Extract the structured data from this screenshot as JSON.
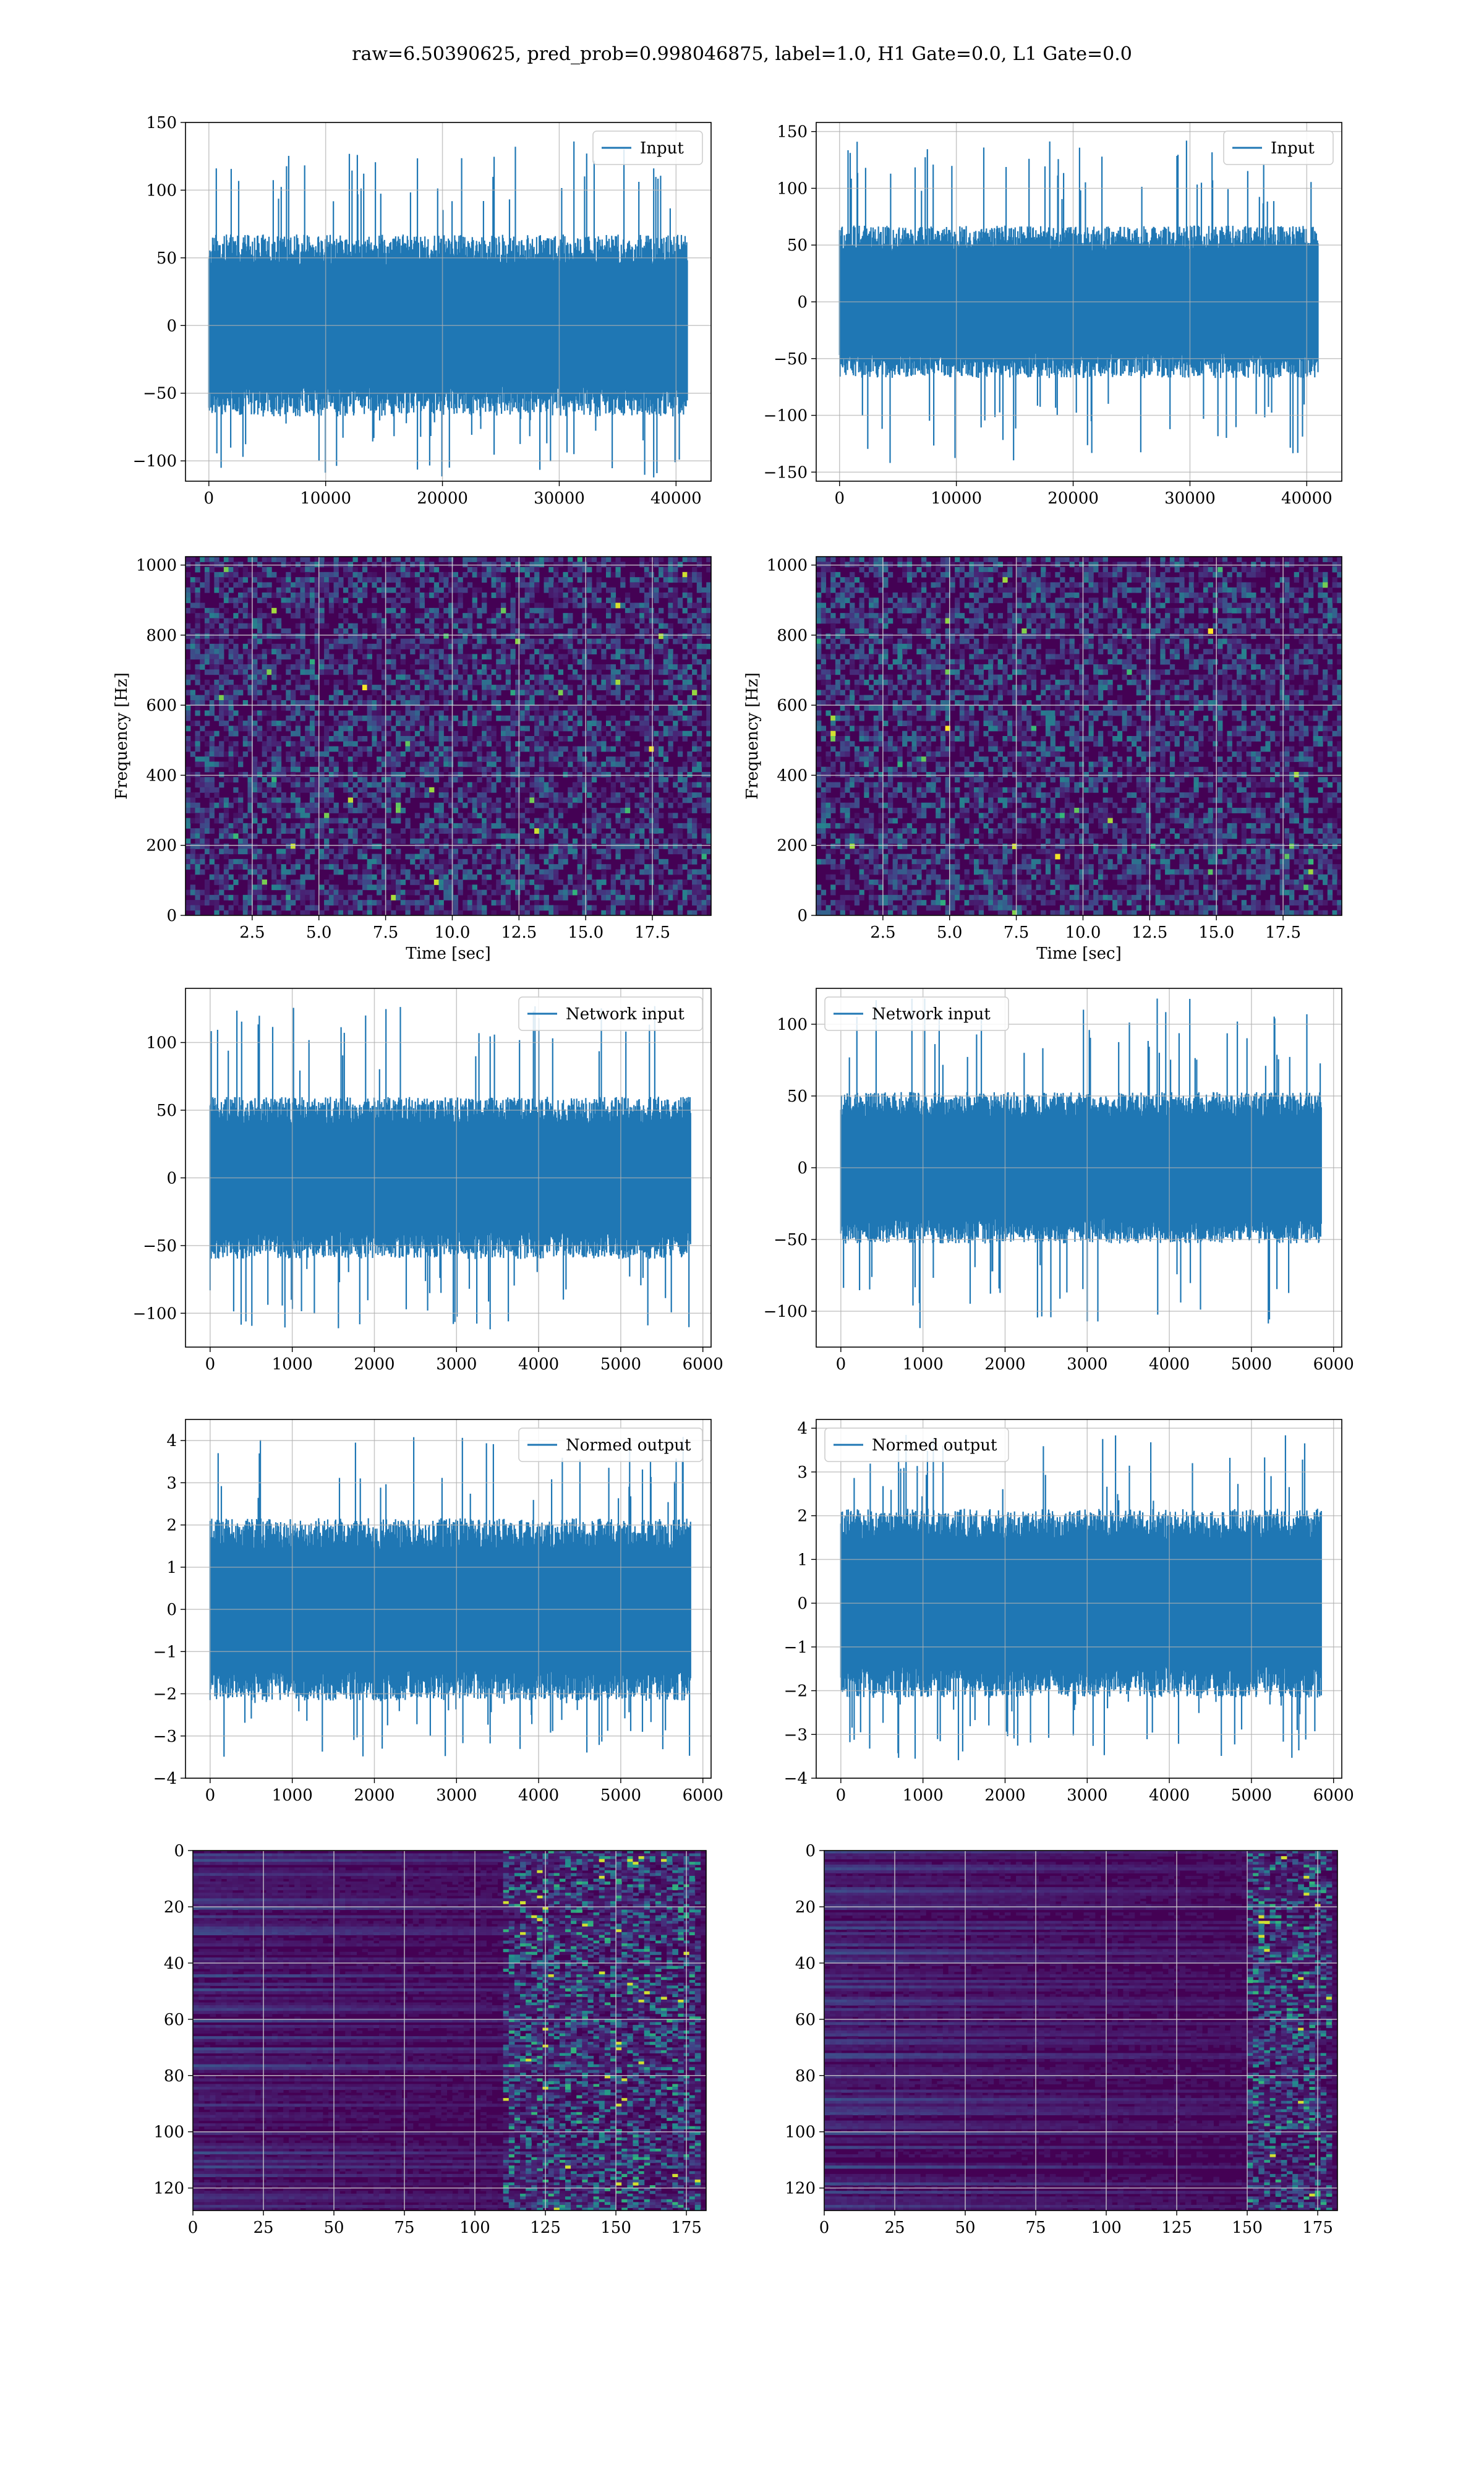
{
  "figure": {
    "suptitle": "raw=6.50390625, pred_prob=0.998046875, label=1.0, H1 Gate=0.0, L1 Gate=0.0",
    "colors": {
      "series": "#1f77b4",
      "grid": "#b0b0b0",
      "viridis_low": "#440154",
      "viridis_high": "#fde725"
    }
  },
  "chart_data": [
    {
      "type": "line",
      "panel": "row1-left",
      "legend": [
        "Input"
      ],
      "legend_loc": "upper right",
      "series": [
        {
          "name": "Input",
          "n_points": 40960,
          "amplitude_range": [
            -115,
            138
          ],
          "noise_sd": 28
        }
      ],
      "xlim": [
        -2000,
        43000
      ],
      "ylim": [
        -115,
        150
      ],
      "xticks": [
        0,
        10000,
        20000,
        30000,
        40000
      ],
      "yticks": [
        -100,
        -50,
        0,
        50,
        100,
        150
      ],
      "xlabel": "",
      "ylabel": "",
      "grid": true
    },
    {
      "type": "line",
      "panel": "row1-right",
      "legend": [
        "Input"
      ],
      "legend_loc": "upper right",
      "series": [
        {
          "name": "Input",
          "n_points": 40960,
          "amplitude_range": [
            -145,
            143
          ],
          "noise_sd": 28
        }
      ],
      "xlim": [
        -2000,
        43000
      ],
      "ylim": [
        -158,
        158
      ],
      "xticks": [
        0,
        10000,
        20000,
        30000,
        40000
      ],
      "yticks": [
        -150,
        -100,
        -50,
        0,
        50,
        100,
        150
      ],
      "xlabel": "",
      "ylabel": "",
      "grid": true
    },
    {
      "type": "heatmap",
      "panel": "row2-left",
      "colormap": "viridis",
      "xlim": [
        0,
        19.7
      ],
      "ylim": [
        0,
        1024
      ],
      "xticks": [
        2.5,
        5.0,
        7.5,
        10.0,
        12.5,
        15.0,
        17.5
      ],
      "yticks": [
        0,
        200,
        400,
        600,
        800,
        1000
      ],
      "xlabel": "Time [sec]",
      "ylabel": "Frequency [Hz]",
      "grid": true
    },
    {
      "type": "heatmap",
      "panel": "row2-right",
      "colormap": "viridis",
      "xlim": [
        0,
        19.7
      ],
      "ylim": [
        0,
        1024
      ],
      "xticks": [
        2.5,
        5.0,
        7.5,
        10.0,
        12.5,
        15.0,
        17.5
      ],
      "yticks": [
        0,
        200,
        400,
        600,
        800,
        1000
      ],
      "xlabel": "Time [sec]",
      "ylabel": "Frequency [Hz]",
      "grid": true
    },
    {
      "type": "line",
      "panel": "row3-left",
      "legend": [
        "Network input"
      ],
      "legend_loc": "upper right",
      "series": [
        {
          "name": "Network input",
          "n_points": 5850,
          "amplitude_range": [
            -112,
            127
          ],
          "noise_sd": 25
        }
      ],
      "xlim": [
        -300,
        6100
      ],
      "ylim": [
        -125,
        140
      ],
      "xticks": [
        0,
        1000,
        2000,
        3000,
        4000,
        5000,
        6000
      ],
      "yticks": [
        -100,
        -50,
        0,
        50,
        100
      ],
      "xlabel": "",
      "ylabel": "",
      "grid": true
    },
    {
      "type": "line",
      "panel": "row3-right",
      "legend": [
        "Network input"
      ],
      "legend_loc": "upper left",
      "series": [
        {
          "name": "Network input",
          "n_points": 5850,
          "amplitude_range": [
            -112,
            118
          ],
          "noise_sd": 22
        }
      ],
      "xlim": [
        -300,
        6100
      ],
      "ylim": [
        -125,
        125
      ],
      "xticks": [
        0,
        1000,
        2000,
        3000,
        4000,
        5000,
        6000
      ],
      "yticks": [
        -100,
        -50,
        0,
        50,
        100
      ],
      "xlabel": "",
      "ylabel": "",
      "grid": true
    },
    {
      "type": "line",
      "panel": "row4-left",
      "legend": [
        "Normed output"
      ],
      "legend_loc": "upper right",
      "series": [
        {
          "name": "Normed output",
          "n_points": 5850,
          "amplitude_range": [
            -3.6,
            4.1
          ],
          "noise_sd": 0.9
        }
      ],
      "xlim": [
        -300,
        6100
      ],
      "ylim": [
        -4,
        4.5
      ],
      "xticks": [
        0,
        1000,
        2000,
        3000,
        4000,
        5000,
        6000
      ],
      "yticks": [
        -4,
        -3,
        -2,
        -1,
        0,
        1,
        2,
        3,
        4
      ],
      "xlabel": "",
      "ylabel": "",
      "grid": true
    },
    {
      "type": "line",
      "panel": "row4-right",
      "legend": [
        "Normed output"
      ],
      "legend_loc": "upper left",
      "series": [
        {
          "name": "Normed output",
          "n_points": 5850,
          "amplitude_range": [
            -3.6,
            3.9
          ],
          "noise_sd": 0.9
        }
      ],
      "xlim": [
        -300,
        6100
      ],
      "ylim": [
        -4,
        4.2
      ],
      "xticks": [
        0,
        1000,
        2000,
        3000,
        4000,
        5000,
        6000
      ],
      "yticks": [
        -4,
        -3,
        -2,
        -1,
        0,
        1,
        2,
        3,
        4
      ],
      "xlabel": "",
      "ylabel": "",
      "grid": true
    },
    {
      "type": "heatmap",
      "panel": "row5-left",
      "colormap": "viridis",
      "bright_column_range": [
        110,
        180
      ],
      "xlim": [
        0,
        182
      ],
      "ylim": [
        128,
        0
      ],
      "xticks": [
        0,
        25,
        50,
        75,
        100,
        125,
        150,
        175
      ],
      "yticks": [
        0,
        20,
        40,
        60,
        80,
        100,
        120
      ],
      "xlabel": "",
      "ylabel": "",
      "grid": true
    },
    {
      "type": "heatmap",
      "panel": "row5-right",
      "colormap": "viridis",
      "bright_column_range": [
        150,
        180
      ],
      "xlim": [
        0,
        182
      ],
      "ylim": [
        128,
        0
      ],
      "xticks": [
        0,
        25,
        50,
        75,
        100,
        125,
        150,
        175
      ],
      "yticks": [
        0,
        20,
        40,
        60,
        80,
        100,
        120
      ],
      "xlabel": "",
      "ylabel": "",
      "grid": true
    }
  ]
}
